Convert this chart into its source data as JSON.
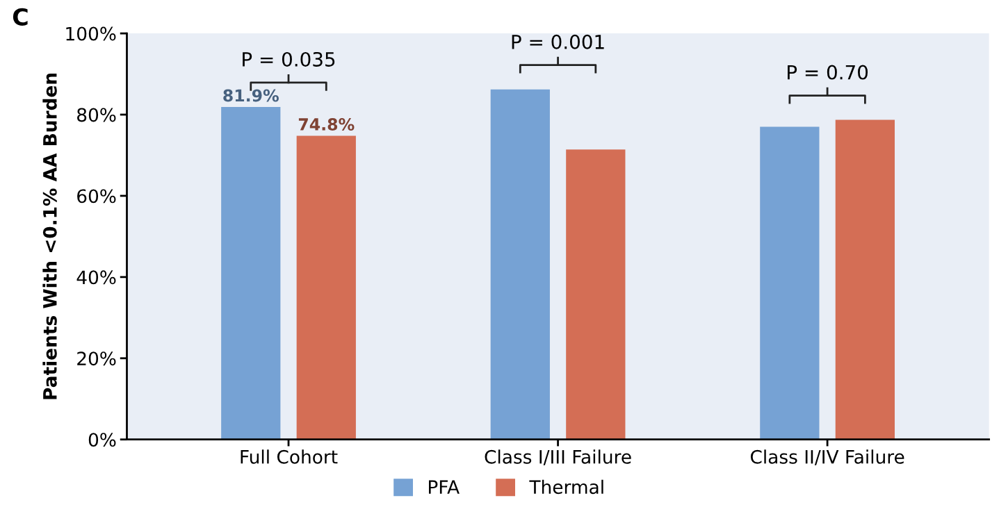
{
  "chart_data": {
    "type": "bar",
    "categories": [
      "Full Cohort",
      "Class I/III Failure",
      "Class II/IV Failure"
    ],
    "ylabel": "Patients With <0.1% AA Burden",
    "series": [
      {
        "name": "PFA",
        "color": "#76a2d4",
        "values": [
          81.9,
          86.2,
          77.0
        ],
        "value_labels": [
          "81.9%",
          null,
          null
        ]
      },
      {
        "name": "Thermal",
        "color": "#d46e55",
        "values": [
          74.8,
          71.4,
          78.7
        ],
        "value_labels": [
          "74.8%",
          null,
          null
        ]
      }
    ],
    "ylim": [
      0,
      100
    ],
    "yticks": [
      {
        "value": 0,
        "label": "0%"
      },
      {
        "value": 20,
        "label": "20%"
      },
      {
        "value": 40,
        "label": "40%"
      },
      {
        "value": 60,
        "label": "60%"
      },
      {
        "value": 80,
        "label": "80%"
      },
      {
        "value": 100,
        "label": "100%"
      }
    ],
    "annotations": [
      "C",
      "P = 0.035",
      "P = 0.001",
      "P = 0.70"
    ],
    "grid": false,
    "legend": "bottom"
  }
}
